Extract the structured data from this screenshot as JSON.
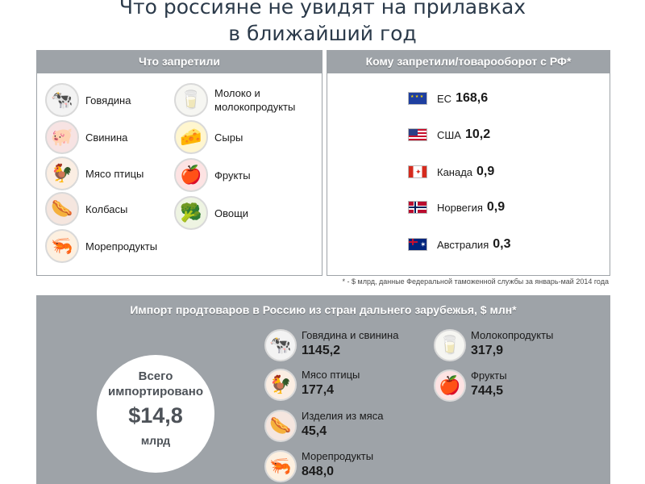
{
  "title": {
    "line1": "Что россияне не увидят на прилавках",
    "line2": "в ближайший год"
  },
  "banned": {
    "header": "Что запретили",
    "items_left": [
      {
        "label": "Говядина",
        "icon": "cow-icon"
      },
      {
        "label": "Свинина",
        "icon": "pig-icon"
      },
      {
        "label": "Мясо птицы",
        "icon": "rooster-icon"
      },
      {
        "label": "Колбасы",
        "icon": "sausage-icon"
      },
      {
        "label": "Морепродукты",
        "icon": "shrimp-icon"
      }
    ],
    "items_right": [
      {
        "label_line1": "Молоко и",
        "label_line2": "молокопродукты",
        "icon": "milk-icon"
      },
      {
        "label": "Сыры",
        "icon": "cheese-icon"
      },
      {
        "label": "Фрукты",
        "icon": "apple-icon"
      },
      {
        "label": "Овощи",
        "icon": "cauliflower-icon"
      }
    ]
  },
  "trade": {
    "header": "Кому запретили/товарооборот с РФ*",
    "countries": [
      {
        "name": "ЕС",
        "value": "168,6",
        "flag": "eu-flag-icon"
      },
      {
        "name": "США",
        "value": "10,2",
        "flag": "us-flag-icon"
      },
      {
        "name": "Канада",
        "value": "0,9",
        "flag": "canada-flag-icon"
      },
      {
        "name": "Норвегия",
        "value": "0,9",
        "flag": "norway-flag-icon"
      },
      {
        "name": "Австралия",
        "value": "0,3",
        "flag": "australia-flag-icon"
      }
    ],
    "footnote": "* - $ млрд, данные Федеральной таможенной службы за январь-май 2014 года"
  },
  "imports": {
    "header": "Импорт продтоваров в Россию из стран дальнего зарубежья, $ млн*",
    "total": {
      "line1": "Всего",
      "line2": "импортировано",
      "amount": "$14,8",
      "unit": "млрд"
    },
    "left_col": [
      {
        "name": "Говядина и свинина",
        "value": "1145,2",
        "icon": "cow-icon"
      },
      {
        "name": "Мясо птицы",
        "value": "177,4",
        "icon": "rooster-icon"
      },
      {
        "name": "Изделия из мяса",
        "value": "45,4",
        "icon": "sausage-icon"
      },
      {
        "name": "Морепродукты",
        "value": "848,0",
        "icon": "shrimp-icon"
      }
    ],
    "right_col": [
      {
        "name": "Молокопродукты",
        "value": "317,9",
        "icon": "milk-icon"
      },
      {
        "name": "Фрукты",
        "value": "744,5",
        "icon": "apple-icon"
      }
    ]
  },
  "colors": {
    "panel": "#9ea3a8",
    "title": "#2b3a4a"
  }
}
